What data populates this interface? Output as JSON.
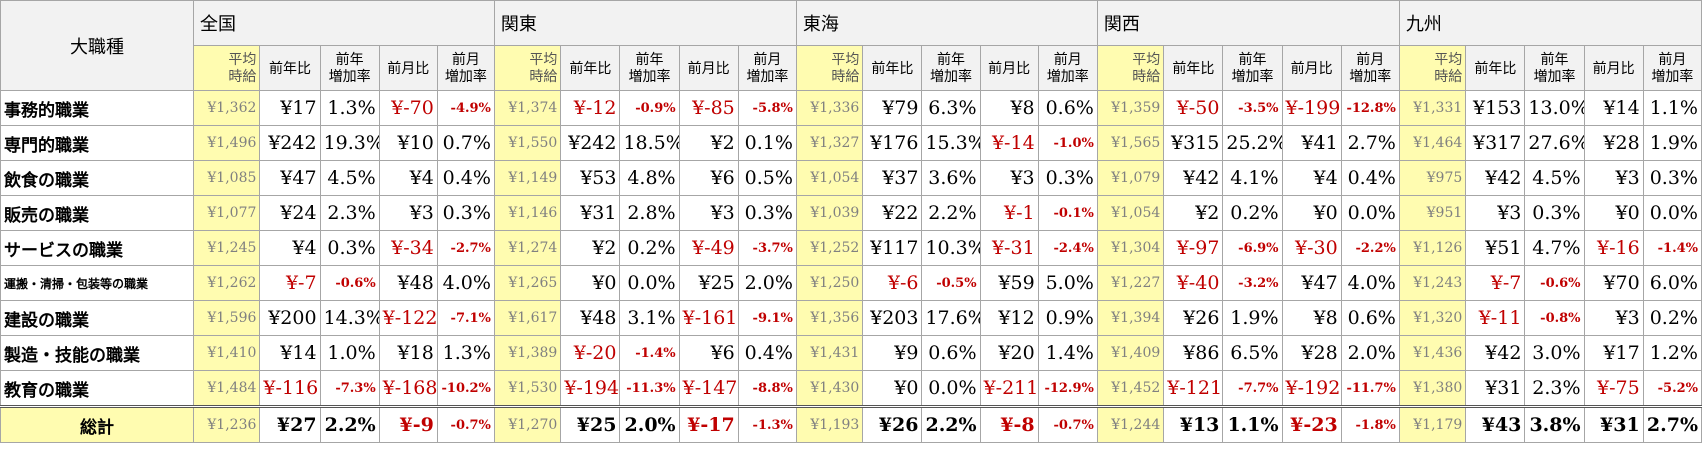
{
  "header": {
    "corner_label": "大職種",
    "regions": [
      "全国",
      "関東",
      "東海",
      "関西",
      "九州"
    ],
    "sub_columns": [
      "平均\n時給",
      "前年比",
      "前年\n増加率",
      "前月比",
      "前月\n増加率"
    ]
  },
  "rows": [
    {
      "label": "事務的職業",
      "cells": [
        [
          "¥1,362",
          "¥17",
          "1.3%",
          "¥-70",
          "-4.9%"
        ],
        [
          "¥1,374",
          "¥-12",
          "-0.9%",
          "¥-85",
          "-5.8%"
        ],
        [
          "¥1,336",
          "¥79",
          "6.3%",
          "¥8",
          "0.6%"
        ],
        [
          "¥1,359",
          "¥-50",
          "-3.5%",
          "¥-199",
          "-12.8%"
        ],
        [
          "¥1,331",
          "¥153",
          "13.0%",
          "¥14",
          "1.1%"
        ]
      ]
    },
    {
      "label": "専門的職業",
      "cells": [
        [
          "¥1,496",
          "¥242",
          "19.3%",
          "¥10",
          "0.7%"
        ],
        [
          "¥1,550",
          "¥242",
          "18.5%",
          "¥2",
          "0.1%"
        ],
        [
          "¥1,327",
          "¥176",
          "15.3%",
          "¥-14",
          "-1.0%"
        ],
        [
          "¥1,565",
          "¥315",
          "25.2%",
          "¥41",
          "2.7%"
        ],
        [
          "¥1,464",
          "¥317",
          "27.6%",
          "¥28",
          "1.9%"
        ]
      ]
    },
    {
      "label": "飲食の職業",
      "cells": [
        [
          "¥1,085",
          "¥47",
          "4.5%",
          "¥4",
          "0.4%"
        ],
        [
          "¥1,149",
          "¥53",
          "4.8%",
          "¥6",
          "0.5%"
        ],
        [
          "¥1,054",
          "¥37",
          "3.6%",
          "¥3",
          "0.3%"
        ],
        [
          "¥1,079",
          "¥42",
          "4.1%",
          "¥4",
          "0.4%"
        ],
        [
          "¥975",
          "¥42",
          "4.5%",
          "¥3",
          "0.3%"
        ]
      ]
    },
    {
      "label": "販売の職業",
      "cells": [
        [
          "¥1,077",
          "¥24",
          "2.3%",
          "¥3",
          "0.3%"
        ],
        [
          "¥1,146",
          "¥31",
          "2.8%",
          "¥3",
          "0.3%"
        ],
        [
          "¥1,039",
          "¥22",
          "2.2%",
          "¥-1",
          "-0.1%"
        ],
        [
          "¥1,054",
          "¥2",
          "0.2%",
          "¥0",
          "0.0%"
        ],
        [
          "¥951",
          "¥3",
          "0.3%",
          "¥0",
          "0.0%"
        ]
      ]
    },
    {
      "label": "サービスの職業",
      "cells": [
        [
          "¥1,245",
          "¥4",
          "0.3%",
          "¥-34",
          "-2.7%"
        ],
        [
          "¥1,274",
          "¥2",
          "0.2%",
          "¥-49",
          "-3.7%"
        ],
        [
          "¥1,252",
          "¥117",
          "10.3%",
          "¥-31",
          "-2.4%"
        ],
        [
          "¥1,304",
          "¥-97",
          "-6.9%",
          "¥-30",
          "-2.2%"
        ],
        [
          "¥1,126",
          "¥51",
          "4.7%",
          "¥-16",
          "-1.4%"
        ]
      ]
    },
    {
      "label": "運搬・清掃・包装等の職業",
      "cells": [
        [
          "¥1,262",
          "¥-7",
          "-0.6%",
          "¥48",
          "4.0%"
        ],
        [
          "¥1,265",
          "¥0",
          "0.0%",
          "¥25",
          "2.0%"
        ],
        [
          "¥1,250",
          "¥-6",
          "-0.5%",
          "¥59",
          "5.0%"
        ],
        [
          "¥1,227",
          "¥-40",
          "-3.2%",
          "¥47",
          "4.0%"
        ],
        [
          "¥1,243",
          "¥-7",
          "-0.6%",
          "¥70",
          "6.0%"
        ]
      ]
    },
    {
      "label": "建設の職業",
      "cells": [
        [
          "¥1,596",
          "¥200",
          "14.3%",
          "¥-122",
          "-7.1%"
        ],
        [
          "¥1,617",
          "¥48",
          "3.1%",
          "¥-161",
          "-9.1%"
        ],
        [
          "¥1,356",
          "¥203",
          "17.6%",
          "¥12",
          "0.9%"
        ],
        [
          "¥1,394",
          "¥26",
          "1.9%",
          "¥8",
          "0.6%"
        ],
        [
          "¥1,320",
          "¥-11",
          "-0.8%",
          "¥3",
          "0.2%"
        ]
      ]
    },
    {
      "label": "製造・技能の職業",
      "cells": [
        [
          "¥1,410",
          "¥14",
          "1.0%",
          "¥18",
          "1.3%"
        ],
        [
          "¥1,389",
          "¥-20",
          "-1.4%",
          "¥6",
          "0.4%"
        ],
        [
          "¥1,431",
          "¥9",
          "0.6%",
          "¥20",
          "1.4%"
        ],
        [
          "¥1,409",
          "¥86",
          "6.5%",
          "¥28",
          "2.0%"
        ],
        [
          "¥1,436",
          "¥42",
          "3.0%",
          "¥17",
          "1.2%"
        ]
      ]
    },
    {
      "label": "教育の職業",
      "cells": [
        [
          "¥1,484",
          "¥-116",
          "-7.3%",
          "¥-168",
          "-10.2%"
        ],
        [
          "¥1,530",
          "¥-194",
          "-11.3%",
          "¥-147",
          "-8.8%"
        ],
        [
          "¥1,430",
          "¥0",
          "0.0%",
          "¥-211",
          "-12.9%"
        ],
        [
          "¥1,452",
          "¥-121",
          "-7.7%",
          "¥-192",
          "-11.7%"
        ],
        [
          "¥1,380",
          "¥31",
          "2.3%",
          "¥-75",
          "-5.2%"
        ]
      ]
    }
  ],
  "total": {
    "label": "総計",
    "cells": [
      [
        "¥1,236",
        "¥27",
        "2.2%",
        "¥-9",
        "-0.7%"
      ],
      [
        "¥1,270",
        "¥25",
        "2.0%",
        "¥-17",
        "-1.3%"
      ],
      [
        "¥1,193",
        "¥26",
        "2.2%",
        "¥-8",
        "-0.7%"
      ],
      [
        "¥1,244",
        "¥13",
        "1.1%",
        "¥-23",
        "-1.8%"
      ],
      [
        "¥1,179",
        "¥43",
        "3.8%",
        "¥31",
        "2.7%"
      ]
    ]
  },
  "colors": {
    "average_fill": "#fffcb0",
    "negative_text": "#c00000",
    "header_fill": "#f2f2f2"
  }
}
